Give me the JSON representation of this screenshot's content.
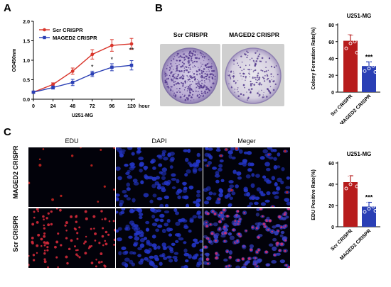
{
  "panel_a": {
    "letter": "A",
    "chart_data": {
      "type": "line",
      "title": "",
      "subtitle": "U251-MG",
      "xlabel": "hour",
      "ylabel": "OD450nm",
      "x": [
        0,
        24,
        48,
        72,
        96,
        120
      ],
      "xticks": [
        "0",
        "24",
        "48",
        "72",
        "96",
        "120"
      ],
      "yticks": [
        "0.0",
        "0.5",
        "1.0",
        "1.5",
        "2.0"
      ],
      "ylim": [
        0,
        2.0
      ],
      "xlim": [
        0,
        120
      ],
      "legend": "top-left",
      "series": [
        {
          "name": "Scr CRISPR",
          "color": "#d9352b",
          "values": [
            0.18,
            0.38,
            0.72,
            1.15,
            1.38,
            1.42
          ],
          "err": [
            0.02,
            0.04,
            0.08,
            0.12,
            0.15,
            0.14
          ]
        },
        {
          "name": "MAGED2 CRISPR",
          "color": "#2a3fb5",
          "values": [
            0.18,
            0.3,
            0.43,
            0.65,
            0.82,
            0.87
          ],
          "err": [
            0.02,
            0.04,
            0.08,
            0.07,
            0.09,
            0.12
          ]
        }
      ],
      "significance": [
        {
          "x": 72,
          "label": "*"
        },
        {
          "x": 96,
          "label": "*"
        },
        {
          "x": 120,
          "label": "**"
        }
      ]
    }
  },
  "panel_b": {
    "letter": "B",
    "dish_labels": [
      "Scr CRISPR",
      "MAGED2 CRISPR"
    ],
    "chart_data": {
      "type": "bar",
      "title": "U251-MG",
      "ylabel": "Colony Formation Rate(%)",
      "categories": [
        "Scr CRISPR",
        "MAGED2 CRISPR"
      ],
      "values": [
        61,
        31
      ],
      "err": [
        7,
        5
      ],
      "points": [
        [
          52,
          58,
          60,
          66,
          70,
          47
        ],
        [
          25,
          28,
          31,
          33,
          36,
          24
        ]
      ],
      "colors": [
        "#b71c1c",
        "#2a3fb5"
      ],
      "yticks": [
        "0",
        "20",
        "40",
        "60",
        "80"
      ],
      "ylim": [
        0,
        80
      ],
      "significance": "***"
    }
  },
  "panel_c": {
    "letter": "C",
    "column_headers": [
      "EDU",
      "DAPI",
      "Meger"
    ],
    "row_labels": [
      "MAGED2 CRISPR",
      "Scr CRISPR"
    ],
    "chart_data": {
      "type": "bar",
      "title": "U251-MG",
      "ylabel": "EDU Positive Rate(%)",
      "categories": [
        "Scr CRISPR",
        "MAGED2 CRISPR"
      ],
      "values": [
        42,
        19
      ],
      "err": [
        6,
        4
      ],
      "points": [
        [
          36,
          40,
          44,
          47,
          50,
          38
        ],
        [
          14,
          17,
          19,
          22,
          25,
          15
        ]
      ],
      "colors": [
        "#b71c1c",
        "#2a3fb5"
      ],
      "yticks": [
        "0",
        "20",
        "40",
        "60"
      ],
      "ylim": [
        0,
        60
      ],
      "significance": "***"
    }
  }
}
